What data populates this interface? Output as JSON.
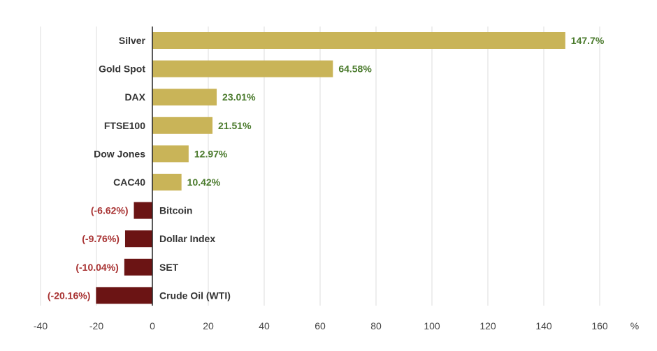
{
  "chart_data": {
    "type": "bar",
    "orientation": "horizontal",
    "title": "",
    "xlabel": "",
    "ylabel": "",
    "unit": "%",
    "xlim": [
      -40,
      160
    ],
    "xticks": [
      -40,
      -20,
      0,
      20,
      40,
      60,
      80,
      100,
      120,
      140,
      160
    ],
    "grid": "vertical",
    "legend": "none",
    "categories": [
      "Silver",
      "Gold Spot",
      "DAX",
      "FTSE100",
      "Dow Jones",
      "CAC40",
      "Bitcoin",
      "Dollar Index",
      "SET",
      "Crude Oil (WTI)"
    ],
    "values": [
      147.7,
      64.58,
      23.01,
      21.51,
      12.97,
      10.42,
      -6.62,
      -9.76,
      -10.04,
      -20.16
    ],
    "value_labels": [
      "147.7%",
      "64.58%",
      "23.01%",
      "21.51%",
      "12.97%",
      "10.42%",
      "(-6.62%)",
      "(-9.76%)",
      "(-10.04%)",
      "(-20.16%)"
    ],
    "colors": {
      "positive_bar": "#c9b458",
      "negative_bar": "#6b1414",
      "positive_text": "#4a7a2c",
      "negative_text": "#a83232"
    }
  }
}
